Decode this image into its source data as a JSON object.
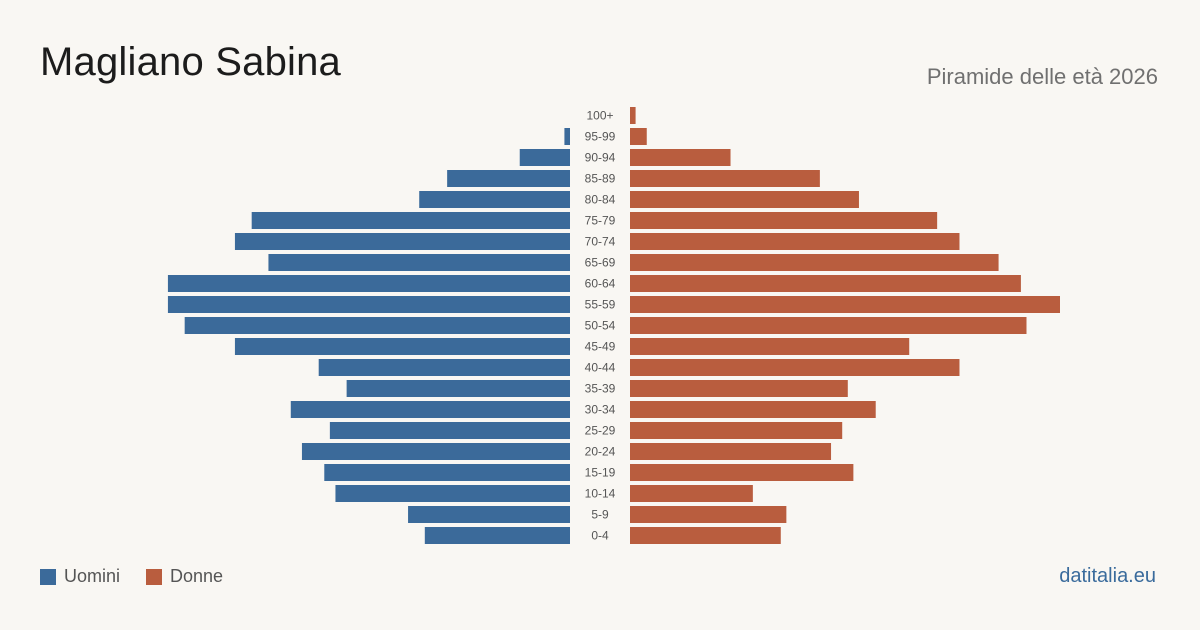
{
  "header": {
    "title": "Magliano Sabina",
    "subtitle": "Piramide delle età 2026"
  },
  "footer": {
    "brand": "datitalia.eu"
  },
  "colors": {
    "men": "#3b6a9a",
    "women": "#b95d3e",
    "tick_label": "#555555"
  },
  "chart_data": {
    "type": "bar",
    "orientation": "horizontal-pyramid",
    "categories": [
      "100+",
      "95-99",
      "90-94",
      "85-89",
      "80-84",
      "75-79",
      "70-74",
      "65-69",
      "60-64",
      "55-59",
      "50-54",
      "45-49",
      "40-44",
      "35-39",
      "30-34",
      "25-29",
      "20-24",
      "15-19",
      "10-14",
      "5-9",
      "0-4"
    ],
    "series": [
      {
        "name": "Uomini",
        "values": [
          0,
          1,
          9,
          22,
          27,
          57,
          60,
          54,
          72,
          72,
          69,
          60,
          45,
          40,
          50,
          43,
          48,
          44,
          42,
          29,
          26
        ]
      },
      {
        "name": "Donne",
        "values": [
          1,
          3,
          18,
          34,
          41,
          55,
          59,
          66,
          70,
          77,
          71,
          50,
          59,
          39,
          44,
          38,
          36,
          40,
          22,
          28,
          27
        ]
      }
    ],
    "legend_position": "bottom-left",
    "grid": false
  }
}
